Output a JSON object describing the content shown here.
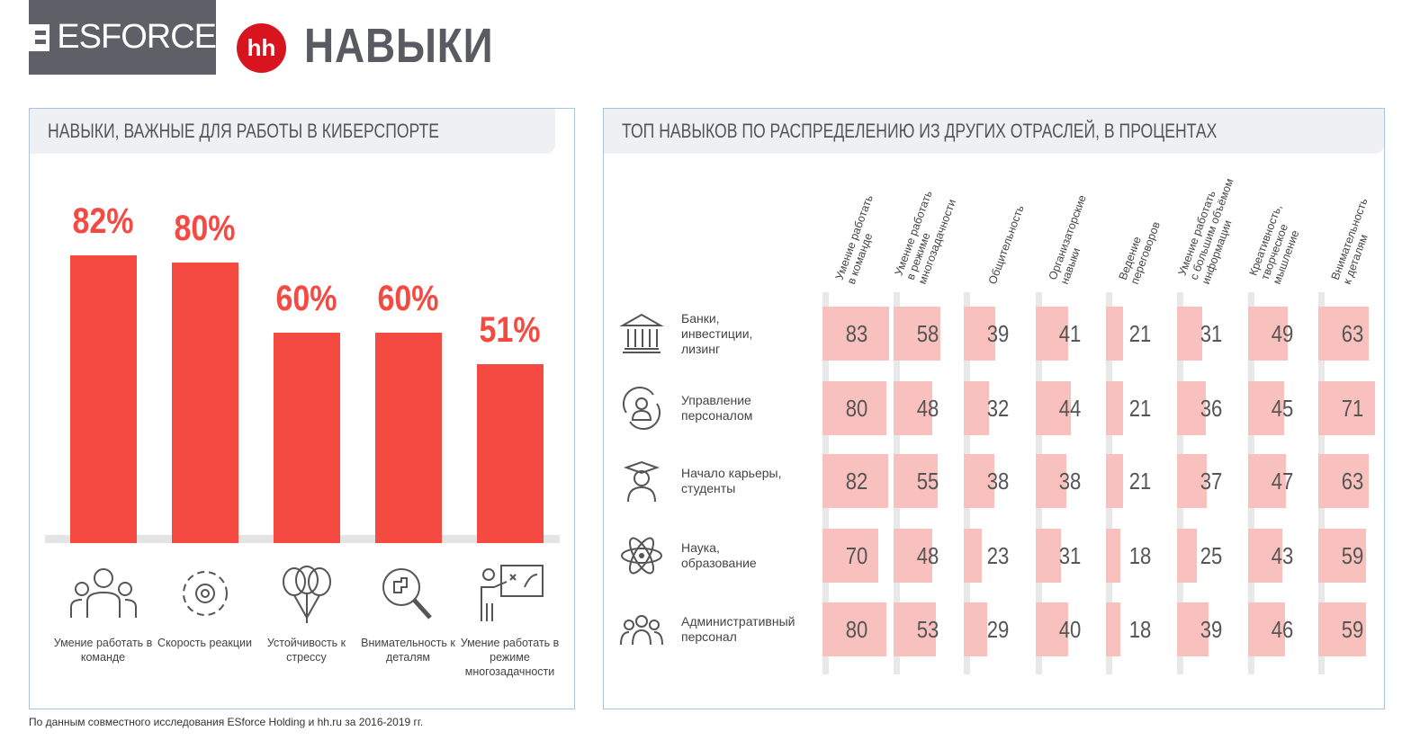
{
  "header": {
    "logo": "ESFORCE",
    "hh_logo": "hh",
    "title": "НАВЫКИ"
  },
  "left_panel": {
    "title": "НАВЫКИ, ВАЖНЫЕ ДЛЯ РАБОТЫ В КИБЕРСПОРТЕ"
  },
  "right_panel": {
    "title": "ТОП НАВЫКОВ ПО РАСПРЕДЕЛЕНИЮ ИЗ ДРУГИХ ОТРАСЛЕЙ, В ПРОЦЕНТАХ"
  },
  "footer": "По данным совместного исследования ESforce Holding и hh.ru за 2016-2019 гг.",
  "colors": {
    "bar": "#f44a42",
    "cell": "#f9c1bd",
    "accent_border": "#a9c4dc"
  },
  "chart_data": [
    {
      "type": "bar",
      "title": "НАВЫКИ, ВАЖНЫЕ ДЛЯ РАБОТЫ В КИБЕРСПОРТЕ",
      "unit": "%",
      "categories": [
        "Умение работать в команде",
        "Скорость реакции",
        "Устойчивость к стрессу",
        "Внимательность к деталям",
        "Умение работать в режиме многозадачности"
      ],
      "labels": [
        "82%",
        "80%",
        "60%",
        "60%",
        "51%"
      ],
      "values": [
        82,
        80,
        60,
        60,
        51
      ],
      "icons": [
        "team-icon",
        "reaction-speed-icon",
        "balloons-icon",
        "magnifier-puzzle-icon",
        "presenter-board-icon"
      ],
      "ylim": [
        0,
        100
      ]
    },
    {
      "type": "heatmap",
      "title": "ТОП НАВЫКОВ ПО РАСПРЕДЕЛЕНИЮ ИЗ ДРУГИХ ОТРАСЛЕЙ, В ПРОЦЕНТАХ",
      "columns": [
        "Умение работать\nв команде",
        "Умение работать\nв режиме\nмногозадачности",
        "Общительность",
        "Организаторские\nнавыки",
        "Ведение\nпереговоров",
        "Умение работать\nс большим объёмом\nинформации",
        "Креативность,\nтворческое\nмышление",
        "Внимательность\nк деталям"
      ],
      "rows": [
        {
          "label": "Банки,\nинвестиции,\nлизинг",
          "icon": "bank-icon",
          "values": [
            83,
            58,
            39,
            41,
            21,
            31,
            49,
            63
          ]
        },
        {
          "label": "Управление\nперсоналом",
          "icon": "hr-person-cycle-icon",
          "values": [
            80,
            48,
            32,
            44,
            21,
            36,
            45,
            71
          ]
        },
        {
          "label": "Начало карьеры,\nстуденты",
          "icon": "graduate-icon",
          "values": [
            82,
            55,
            38,
            38,
            21,
            37,
            47,
            63
          ]
        },
        {
          "label": "Наука,\nобразование",
          "icon": "atom-icon",
          "values": [
            70,
            48,
            23,
            31,
            18,
            25,
            43,
            59
          ]
        },
        {
          "label": "Административный\nперсонал",
          "icon": "group-icon",
          "values": [
            80,
            53,
            29,
            40,
            18,
            39,
            46,
            59
          ]
        }
      ]
    }
  ]
}
